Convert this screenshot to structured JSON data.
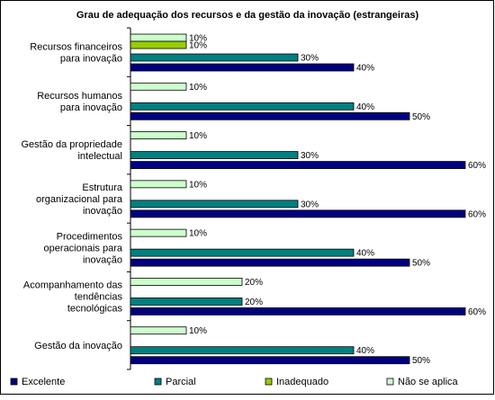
{
  "chart_data": {
    "type": "bar",
    "orientation": "horizontal",
    "title": "Grau de adequação dos recursos e da gestão da inovação (estrangeiras)",
    "categories": [
      [
        "Recursos financeiros",
        "para inovação"
      ],
      [
        "Recursos humanos",
        "para inovação"
      ],
      [
        "Gestão da propriedade",
        "intelectual"
      ],
      [
        "Estrutura",
        "organizacional para",
        "inovação"
      ],
      [
        "Procedimentos",
        "operacionais para",
        "inovação"
      ],
      [
        "Acompanhamento das",
        "tendências",
        "tecnológicas"
      ],
      [
        "Gestão da inovação"
      ]
    ],
    "series": [
      {
        "name": "Não se aplica",
        "color": "#ccffcc",
        "values": [
          10,
          10,
          10,
          10,
          10,
          20,
          10
        ]
      },
      {
        "name": "Inadequado",
        "color": "#99cc00",
        "values": [
          10,
          0,
          0,
          0,
          0,
          0,
          0
        ]
      },
      {
        "name": "Parcial",
        "color": "#008080",
        "values": [
          30,
          40,
          30,
          30,
          40,
          20,
          40
        ]
      },
      {
        "name": "Excelente",
        "color": "#000080",
        "values": [
          40,
          50,
          60,
          60,
          50,
          60,
          50
        ]
      }
    ],
    "value_suffix": "%",
    "xlim": [
      0,
      60
    ],
    "legend": {
      "position": "bottom",
      "order": [
        "Excelente",
        "Parcial",
        "Inadequado",
        "Não se aplica"
      ]
    }
  }
}
